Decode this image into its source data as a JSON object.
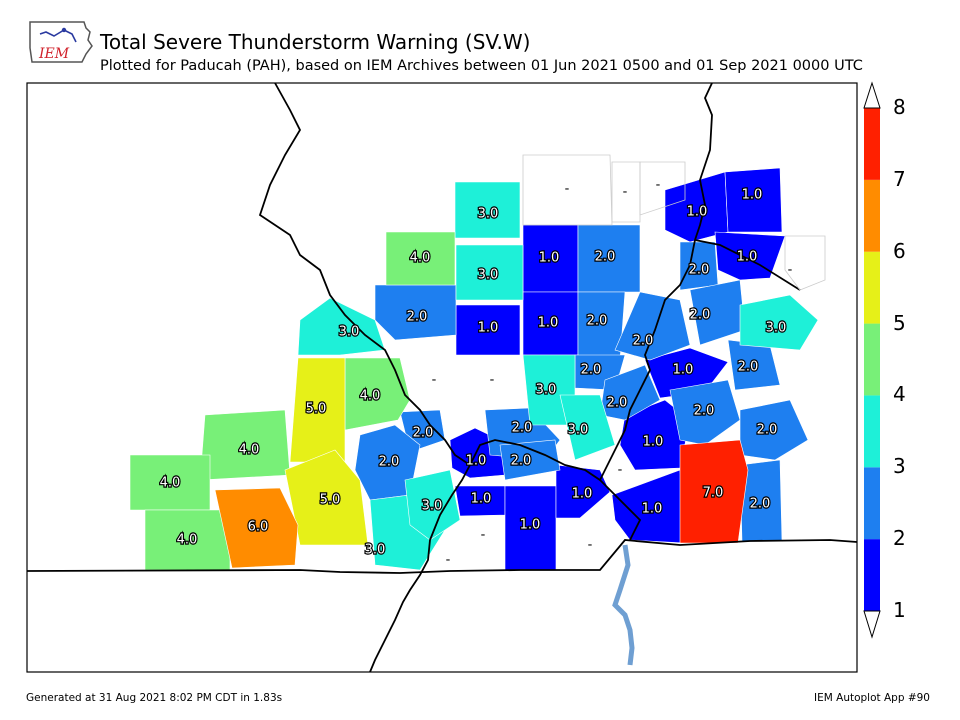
{
  "header": {
    "title": "Total Severe Thunderstorm Warning (SV.W)",
    "subtitle": "Plotted for Paducah (PAH), based on IEM Archives  between 01 Jun 2021 0500 and 01 Sep 2021 0000 UTC",
    "logo_text": "IEM"
  },
  "footer": {
    "generated": "Generated at 31 Aug 2021 8:02 PM CDT in 1.83s",
    "app": "IEM Autoplot App #90"
  },
  "colorbar": {
    "ticks": [
      "1",
      "2",
      "3",
      "4",
      "5",
      "6",
      "7",
      "8"
    ],
    "colors": [
      "#0000ff",
      "#1e7ff0",
      "#1ef0d8",
      "#78f078",
      "#e6f018",
      "#ff8c00",
      "#ff2000"
    ]
  },
  "counties": [
    {
      "label": "1.0",
      "value": 1
    },
    {
      "label": "1.0",
      "value": 1
    },
    {
      "label": "1.0",
      "value": 1
    },
    {
      "label": "1.0",
      "value": 1
    },
    {
      "label": "1.0",
      "value": 1
    },
    {
      "label": "1.0",
      "value": 1
    },
    {
      "label": "1.0",
      "value": 1
    },
    {
      "label": "1.0",
      "value": 1
    },
    {
      "label": "1.0",
      "value": 1
    },
    {
      "label": "1.0",
      "value": 1
    },
    {
      "label": "1.0",
      "value": 1
    },
    {
      "label": "1.0",
      "value": 1
    },
    {
      "label": "1.0",
      "value": 1
    },
    {
      "label": "2.0",
      "value": 2
    },
    {
      "label": "2.0",
      "value": 2
    },
    {
      "label": "2.0",
      "value": 2
    },
    {
      "label": "2.0",
      "value": 2
    },
    {
      "label": "2.0",
      "value": 2
    },
    {
      "label": "2.0",
      "value": 2
    },
    {
      "label": "2.0",
      "value": 2
    },
    {
      "label": "2.0",
      "value": 2
    },
    {
      "label": "2.0",
      "value": 2
    },
    {
      "label": "2.0",
      "value": 2
    },
    {
      "label": "2.0",
      "value": 2
    },
    {
      "label": "2.0",
      "value": 2
    },
    {
      "label": "2.0",
      "value": 2
    },
    {
      "label": "2.0",
      "value": 2
    },
    {
      "label": "2.0",
      "value": 2
    },
    {
      "label": "2.0",
      "value": 2
    },
    {
      "label": "3.0",
      "value": 3
    },
    {
      "label": "3.0",
      "value": 3
    },
    {
      "label": "3.0",
      "value": 3
    },
    {
      "label": "3.0",
      "value": 3
    },
    {
      "label": "3.0",
      "value": 3
    },
    {
      "label": "3.0",
      "value": 3
    },
    {
      "label": "3.0",
      "value": 3
    },
    {
      "label": "3.0",
      "value": 3
    },
    {
      "label": "4.0",
      "value": 4
    },
    {
      "label": "4.0",
      "value": 4
    },
    {
      "label": "4.0",
      "value": 4
    },
    {
      "label": "4.0",
      "value": 4
    },
    {
      "label": "4.0",
      "value": 4
    },
    {
      "label": "5.0",
      "value": 5
    },
    {
      "label": "5.0",
      "value": 5
    },
    {
      "label": "6.0",
      "value": 6
    },
    {
      "label": "7.0",
      "value": 7
    }
  ],
  "no_data_label": "-"
}
